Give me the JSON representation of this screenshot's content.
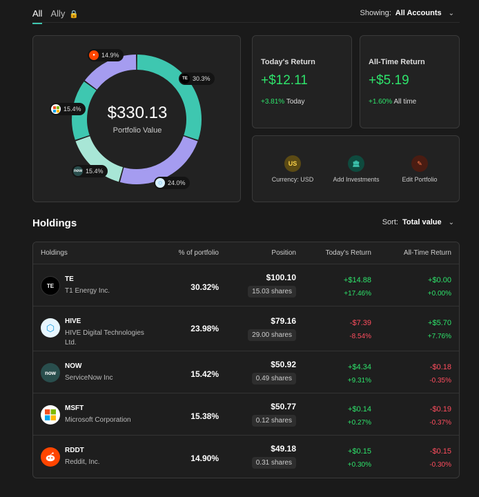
{
  "tabs": [
    {
      "label": "All"
    },
    {
      "label": "Ally"
    }
  ],
  "showing": {
    "label": "Showing:",
    "value": "All Accounts"
  },
  "portfolio": {
    "value": "$330.13",
    "label": "Portfolio Value"
  },
  "allocation": [
    {
      "ticker": "TE",
      "pct": 30.3,
      "label": "30.3%",
      "color": "#3ec7b0"
    },
    {
      "ticker": "HIVE",
      "pct": 24.0,
      "label": "24.0%",
      "color": "#a59cf0"
    },
    {
      "ticker": "NOW",
      "pct": 15.4,
      "label": "15.4%",
      "color": "#a8e6d6"
    },
    {
      "ticker": "MSFT",
      "pct": 15.4,
      "label": "15.4%",
      "color": "#3ec7b0"
    },
    {
      "ticker": "RDDT",
      "pct": 14.9,
      "label": "14.9%",
      "color": "#a59cf0"
    }
  ],
  "todays_return": {
    "title": "Today's Return",
    "value": "+$12.11",
    "pct": "+3.81%",
    "label": "Today"
  },
  "alltime_return": {
    "title": "All-Time Return",
    "value": "+$5.19",
    "pct": "+1.60%",
    "label": "All time"
  },
  "actions": {
    "currency": {
      "icon_text": "US",
      "label": "Currency: USD"
    },
    "add": {
      "label": "Add Investments"
    },
    "edit": {
      "label": "Edit Portfolio"
    }
  },
  "holdings": {
    "title": "Holdings",
    "sort_label": "Sort:",
    "sort_value": "Total value",
    "columns": [
      "Holdings",
      "% of portfolio",
      "Position",
      "Today's Return",
      "All-Time Return"
    ],
    "rows": [
      {
        "logo": "TE",
        "ticker": "TE",
        "name": "T1 Energy Inc.",
        "pct": "30.32%",
        "value": "$100.10",
        "shares": "15.03 shares",
        "today": "+$14.88",
        "today_pct": "+17.46%",
        "today_dir": "up",
        "all": "+$0.00",
        "all_pct": "+0.00%",
        "all_dir": "up"
      },
      {
        "logo": "",
        "ticker": "HIVE",
        "name": "HIVE Digital Technologies Ltd.",
        "pct": "23.98%",
        "value": "$79.16",
        "shares": "29.00 shares",
        "today": "-$7.39",
        "today_pct": "-8.54%",
        "today_dir": "down",
        "all": "+$5.70",
        "all_pct": "+7.76%",
        "all_dir": "up"
      },
      {
        "logo": "now",
        "ticker": "NOW",
        "name": "ServiceNow Inc",
        "pct": "15.42%",
        "value": "$50.92",
        "shares": "0.49 shares",
        "today": "+$4.34",
        "today_pct": "+9.31%",
        "today_dir": "up",
        "all": "-$0.18",
        "all_pct": "-0.35%",
        "all_dir": "down"
      },
      {
        "logo": "",
        "ticker": "MSFT",
        "name": "Microsoft Corporation",
        "pct": "15.38%",
        "value": "$50.77",
        "shares": "0.12 shares",
        "today": "+$0.14",
        "today_pct": "+0.27%",
        "today_dir": "up",
        "all": "-$0.19",
        "all_pct": "-0.37%",
        "all_dir": "down"
      },
      {
        "logo": "",
        "ticker": "RDDT",
        "name": "Reddit, Inc.",
        "pct": "14.90%",
        "value": "$49.18",
        "shares": "0.31 shares",
        "today": "+$0.15",
        "today_pct": "+0.30%",
        "today_dir": "up",
        "all": "-$0.15",
        "all_pct": "-0.30%",
        "all_dir": "down"
      }
    ]
  }
}
